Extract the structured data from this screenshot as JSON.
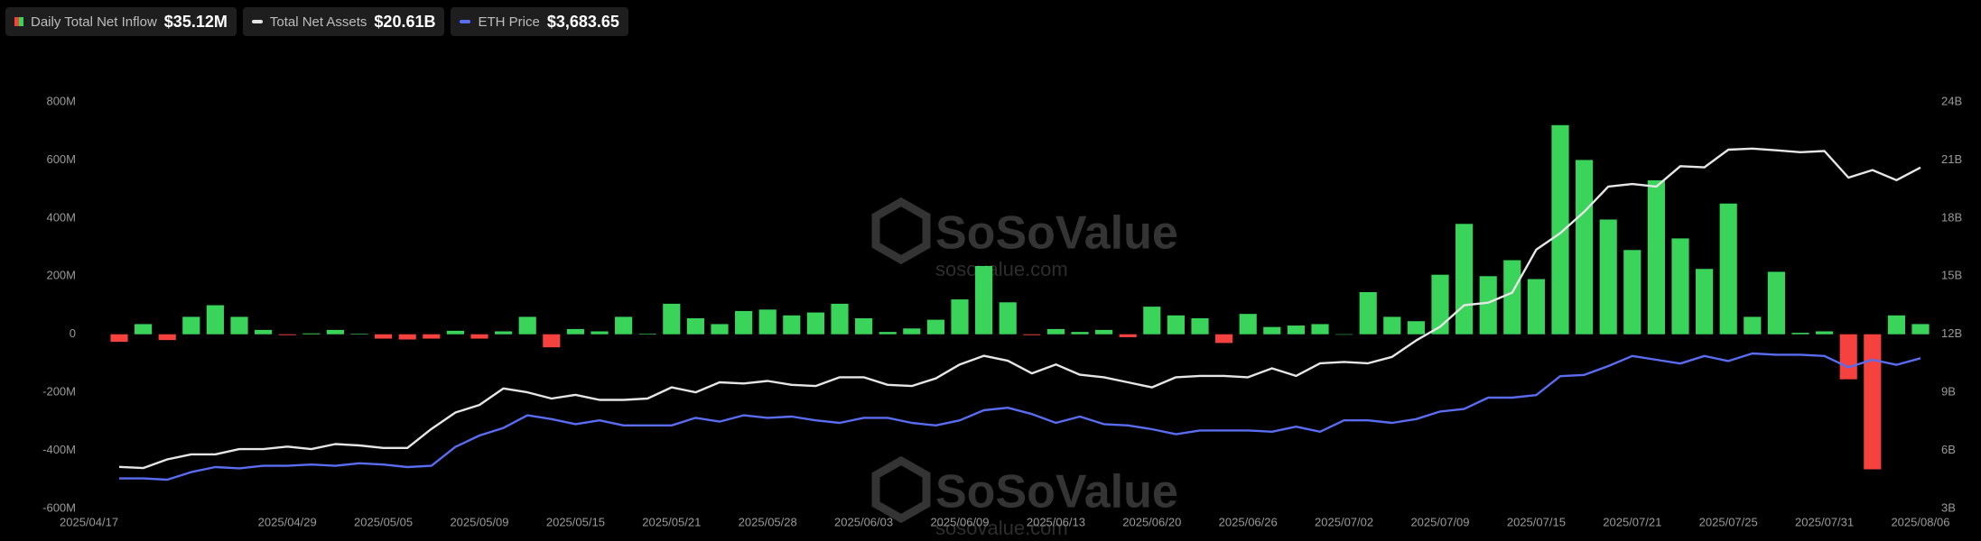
{
  "chart_data": {
    "type": "bar",
    "watermark": "SoSoValue",
    "watermark_url": "sosovalue.com",
    "categories": [
      "2025/04/17",
      null,
      null,
      null,
      null,
      null,
      null,
      "2025/04/29",
      null,
      null,
      null,
      "2025/05/05",
      null,
      null,
      null,
      "2025/05/09",
      null,
      null,
      null,
      "2025/05/15",
      null,
      null,
      null,
      "2025/05/21",
      null,
      null,
      null,
      "2025/05/28",
      null,
      null,
      null,
      "2025/06/03",
      null,
      null,
      null,
      "2025/06/09",
      null,
      null,
      null,
      "2025/06/13",
      null,
      null,
      null,
      "2025/06/20",
      null,
      null,
      null,
      "2025/06/26",
      null,
      null,
      null,
      "2025/07/02",
      null,
      null,
      null,
      "2025/07/09",
      null,
      null,
      null,
      "2025/07/15",
      null,
      null,
      null,
      "2025/07/21",
      null,
      null,
      null,
      "2025/07/25",
      null,
      null,
      null,
      "2025/07/31",
      null,
      null,
      null,
      "2025/08/06"
    ],
    "ylim": [
      -600,
      800
    ],
    "yticks": [
      {
        "value": -600,
        "label": "-600M"
      },
      {
        "value": -400,
        "label": "-400M"
      },
      {
        "value": -200,
        "label": "-200M"
      },
      0,
      {
        "value": 200,
        "label": "200M"
      },
      {
        "value": 400,
        "label": "400M"
      },
      {
        "value": 600,
        "label": "600M"
      },
      {
        "value": 800,
        "label": "800M"
      }
    ],
    "y2lim": [
      3,
      24
    ],
    "y2ticks": [
      {
        "value": 3,
        "label": "3B"
      },
      {
        "value": 6,
        "label": "6B"
      },
      {
        "value": 9,
        "label": "9B"
      },
      {
        "value": 12,
        "label": "12B"
      },
      {
        "value": 15,
        "label": "15B"
      },
      {
        "value": 18,
        "label": "18B"
      },
      {
        "value": 21,
        "label": "21B"
      },
      {
        "value": 24,
        "label": "24B"
      }
    ],
    "grid": false,
    "series": [
      {
        "name": "Daily Total Net Inflow",
        "type": "bar",
        "color": "#3ad45b",
        "negative_color": "#f5423f",
        "latest_label": "$35.12M",
        "values": [
          -26,
          35,
          -20,
          60,
          100,
          60,
          15,
          -3,
          3,
          15,
          2,
          -15,
          -18,
          -15,
          12,
          -15,
          10,
          60,
          -45,
          18,
          10,
          60,
          2,
          105,
          55,
          35,
          80,
          85,
          65,
          75,
          105,
          55,
          8,
          20,
          50,
          120,
          235,
          110,
          -3,
          18,
          8,
          15,
          -10,
          95,
          65,
          55,
          -30,
          70,
          25,
          30,
          35,
          0,
          145,
          60,
          45,
          205,
          380,
          200,
          255,
          190,
          720,
          600,
          395,
          290,
          530,
          330,
          225,
          450,
          60,
          215,
          5,
          10,
          -155,
          -465,
          65,
          35.12
        ]
      },
      {
        "name": "Total Net Assets",
        "type": "line",
        "axis": "y2",
        "color": "#e6e6e6",
        "latest_label": "$20.61B",
        "values": [
          5.15,
          5.09,
          5.54,
          5.8,
          5.8,
          6.07,
          6.07,
          6.2,
          6.07,
          6.33,
          6.26,
          6.13,
          6.13,
          7.11,
          7.96,
          8.35,
          9.2,
          9.0,
          8.68,
          8.87,
          8.61,
          8.61,
          8.68,
          9.26,
          9.0,
          9.52,
          9.46,
          9.59,
          9.39,
          9.33,
          9.78,
          9.78,
          9.39,
          9.33,
          9.72,
          10.44,
          10.89,
          10.63,
          9.98,
          10.44,
          9.91,
          9.78,
          9.52,
          9.26,
          9.78,
          9.85,
          9.85,
          9.78,
          10.24,
          9.85,
          10.5,
          10.57,
          10.5,
          10.83,
          11.68,
          12.39,
          13.5,
          13.63,
          14.15,
          16.37,
          17.22,
          18.33,
          19.63,
          19.76,
          19.63,
          20.68,
          20.62,
          21.53,
          21.59,
          21.5,
          21.4,
          21.46,
          20.09,
          20.48,
          19.96,
          20.61
        ]
      },
      {
        "name": "ETH Price",
        "type": "line",
        "axis": "hidden",
        "color": "#5a6cf0",
        "latest_label": "$3,683.65",
        "values": [
          1580,
          1580,
          1558,
          1691,
          1779,
          1757,
          1801,
          1801,
          1823,
          1801,
          1845,
          1823,
          1779,
          1801,
          2133,
          2331,
          2464,
          2685,
          2619,
          2530,
          2597,
          2508,
          2508,
          2508,
          2641,
          2575,
          2685,
          2641,
          2663,
          2597,
          2552,
          2641,
          2641,
          2552,
          2508,
          2597,
          2773,
          2818,
          2707,
          2552,
          2663,
          2530,
          2508,
          2442,
          2354,
          2420,
          2420,
          2420,
          2398,
          2486,
          2398,
          2597,
          2597,
          2552,
          2619,
          2751,
          2796,
          2994,
          2994,
          3039,
          3370,
          3392,
          3547,
          3724,
          3657,
          3591,
          3724,
          3635,
          3768,
          3746,
          3746,
          3724,
          3525,
          3657,
          3569,
          3683.65
        ]
      }
    ]
  }
}
